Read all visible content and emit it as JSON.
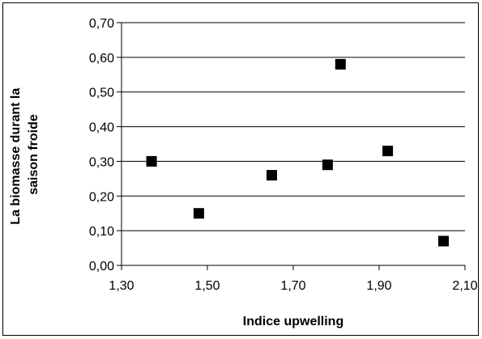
{
  "chart_data": {
    "type": "scatter",
    "title": "",
    "xlabel": "Indice upwelling",
    "ylabel_lines": [
      "La biomasse durant la",
      "saison froide"
    ],
    "xlim": [
      1.3,
      2.1
    ],
    "ylim": [
      0.0,
      0.7
    ],
    "x_ticks": [
      "1,30",
      "1,50",
      "1,70",
      "1,90",
      "2,10"
    ],
    "y_ticks": [
      "0,00",
      "0,10",
      "0,20",
      "0,30",
      "0,40",
      "0,50",
      "0,60",
      "0,70"
    ],
    "grid": "horizontal",
    "legend": "none",
    "marker": "square",
    "marker_color": "#000000",
    "points": [
      {
        "x": 1.37,
        "y": 0.3
      },
      {
        "x": 1.48,
        "y": 0.15
      },
      {
        "x": 1.65,
        "y": 0.26
      },
      {
        "x": 1.78,
        "y": 0.29
      },
      {
        "x": 1.81,
        "y": 0.58
      },
      {
        "x": 1.92,
        "y": 0.33
      },
      {
        "x": 2.05,
        "y": 0.07
      }
    ]
  }
}
